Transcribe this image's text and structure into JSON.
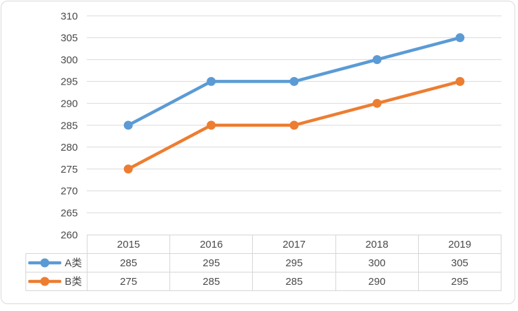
{
  "chart_data": {
    "type": "line",
    "categories": [
      "2015",
      "2016",
      "2017",
      "2018",
      "2019"
    ],
    "series": [
      {
        "name": "A类",
        "color": "#5B9BD5",
        "values": [
          285,
          295,
          295,
          300,
          305
        ]
      },
      {
        "name": "B类",
        "color": "#ED7D31",
        "values": [
          275,
          285,
          285,
          290,
          295
        ]
      }
    ],
    "ylim": [
      260,
      310
    ],
    "yticks": [
      310,
      305,
      300,
      295,
      290,
      285,
      280,
      275,
      270,
      265,
      260
    ],
    "grid": "horizontal",
    "marker": "circle",
    "legend_position": "data-table-left",
    "data_table_shown": true
  },
  "colors": {
    "series_a_blue": "#5B9BD5",
    "series_b_orange": "#ED7D31",
    "gridline": "#D9D9D9",
    "table_border": "#D6D6D6",
    "axis_text": "#4A4A4A",
    "canvas_border": "#D9D9D9",
    "background": "#FFFFFF"
  }
}
